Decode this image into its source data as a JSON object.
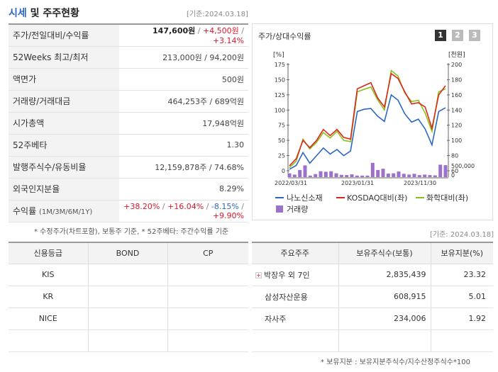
{
  "header": {
    "title_blue": "시세",
    "title_rest": " 및 주주현황",
    "date": "[기준:2024.03.18]"
  },
  "info_rows": [
    {
      "label": "주가/전일대비/수익률"
    },
    {
      "label": "52Weeks 최고/최저",
      "value": "213,000원 / 94,200원"
    },
    {
      "label": "액면가",
      "value": "500원"
    },
    {
      "label": "거래량/거래대금",
      "value": "464,253주 / 689억원"
    },
    {
      "label": "시가총액",
      "value": "17,948억원"
    },
    {
      "label": "52주베타",
      "value": "1.30"
    },
    {
      "label": "발행주식수/유동비율",
      "value": "12,159,878주 / 74.68%"
    },
    {
      "label": "외국인지분율",
      "value": "8.29%"
    },
    {
      "label": "수익률",
      "label_sub": "(1M/3M/6M/1Y)"
    }
  ],
  "price": {
    "price": "147,600원",
    "sep": " / ",
    "change": "+4,500원",
    "rate": "+3.14%"
  },
  "returns": {
    "m1": "+38.20%",
    "m3": "+16.04%",
    "m6": "-8.15%",
    "y1": "+9.90%",
    "sep": " / "
  },
  "note1": "* 수정주가(차트포함), 보통주 기준, * 52주베타: 주간수익률 기준",
  "chart": {
    "title": "주가/상대수익률",
    "pages": [
      "1",
      "2",
      "3"
    ],
    "left_unit": "[%]",
    "right_unit": "[천원]",
    "left_ticks": [
      "175",
      "150",
      "125",
      "100",
      "75",
      "50",
      "25",
      "0"
    ],
    "right_ticks": [
      "200",
      "180",
      "160",
      "140",
      "120",
      "100",
      "80",
      "60"
    ],
    "vol_tick": "500,000",
    "vol_zero": "0",
    "x_ticks": [
      "2022/03/31",
      "2023/01/31",
      "2023/11/30"
    ],
    "legend": [
      "나노신소재",
      "KOSDAQ대비(좌)",
      "화학대비(좌)",
      "거래량"
    ],
    "colors": {
      "stock": "#2b66c4",
      "kosdaq": "#d8281c",
      "chem": "#8cbf1a",
      "volume": "#9b71c9"
    }
  },
  "chart_data": {
    "type": "line",
    "ylim_left": [
      0,
      175
    ],
    "ylim_right": [
      60,
      200
    ],
    "series": [
      {
        "name": "나노신소재",
        "values": [
          62,
          67,
          84,
          70,
          80,
          90,
          82,
          88,
          80,
          86,
          138,
          141,
          142,
          132,
          125,
          160,
          153,
          135,
          124,
          128,
          115,
          94,
          138,
          143
        ]
      },
      {
        "name": "KOSDAQ대비(좌)",
        "values": [
          8,
          20,
          50,
          38,
          50,
          68,
          58,
          68,
          55,
          52,
          135,
          140,
          145,
          120,
          105,
          160,
          152,
          130,
          110,
          112,
          105,
          70,
          125,
          140
        ]
      },
      {
        "name": "화학대비(좌)",
        "values": [
          5,
          16,
          52,
          36,
          47,
          63,
          54,
          65,
          50,
          48,
          130,
          134,
          138,
          117,
          100,
          165,
          156,
          128,
          114,
          116,
          95,
          65,
          130,
          135
        ]
      },
      {
        "name": "거래량",
        "values": [
          150000,
          100000,
          280000,
          460000,
          60000,
          120000,
          230000,
          210000,
          230000,
          150000,
          90000,
          80000,
          110000,
          60000,
          60000,
          60000,
          560000,
          280000,
          330000,
          140000,
          150000,
          220000,
          130000,
          100000,
          130000,
          80000,
          100000,
          80000,
          70000,
          490000,
          470000
        ]
      }
    ]
  },
  "shareholder_date": "[기준: 2024.03.18]",
  "credit": {
    "headers": [
      "신용등급",
      "BOND",
      "CP"
    ],
    "rows": [
      [
        "KIS",
        "",
        ""
      ],
      [
        "KR",
        "",
        ""
      ],
      [
        "NICE",
        "",
        ""
      ],
      [
        "",
        "",
        ""
      ]
    ]
  },
  "holders": {
    "headers": [
      "주요주주",
      "보유주식수(보통)",
      "보유지분(%)"
    ],
    "rows": [
      [
        "박장우 외 7인",
        "2,835,439",
        "23.32"
      ],
      [
        "삼성자산운용",
        "608,915",
        "5.01"
      ],
      [
        "자사주",
        "234,006",
        "1.92"
      ],
      [
        "",
        "",
        ""
      ]
    ]
  },
  "note2": "* 보유지분 : 보유지분주식수/지수산정주식수*100"
}
